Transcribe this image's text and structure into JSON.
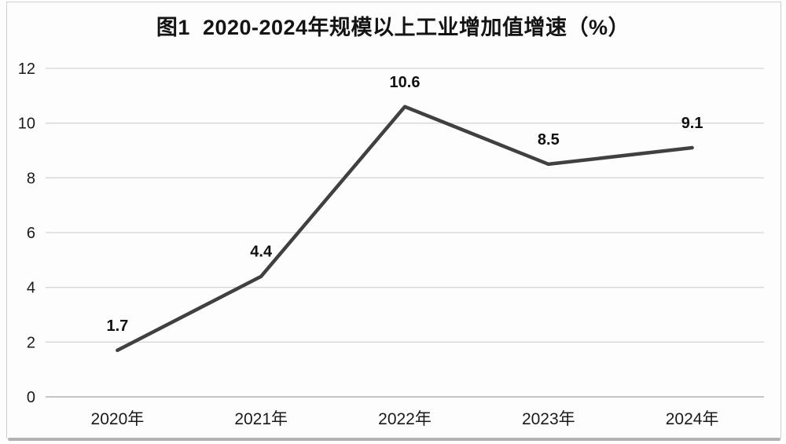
{
  "window": {
    "background": "#fdfdfd",
    "frame_border_color": "#cfcfcf",
    "bottom_edge_color": "#b4b1b4"
  },
  "chart_data": {
    "type": "line",
    "title": "图1  2020-2024年规模以上工业增加值增速（%）",
    "categories": [
      "2020年",
      "2021年",
      "2022年",
      "2023年",
      "2024年"
    ],
    "values": [
      1.7,
      4.4,
      10.6,
      8.5,
      9.1
    ],
    "data_labels": [
      "1.7",
      "4.4",
      "10.6",
      "8.5",
      "9.1"
    ],
    "xlabel": "",
    "ylabel": "",
    "ylim": [
      0,
      12
    ],
    "yticks": [
      0,
      2,
      4,
      6,
      8,
      10,
      12
    ],
    "grid": "horizontal",
    "legend": "none",
    "line_color": "#404040",
    "gridline_color": "#d6d6d6",
    "axis_line_color": "#bdbdbd",
    "tick_label_color": "#1a1a1a",
    "data_label_color": "#111111"
  }
}
